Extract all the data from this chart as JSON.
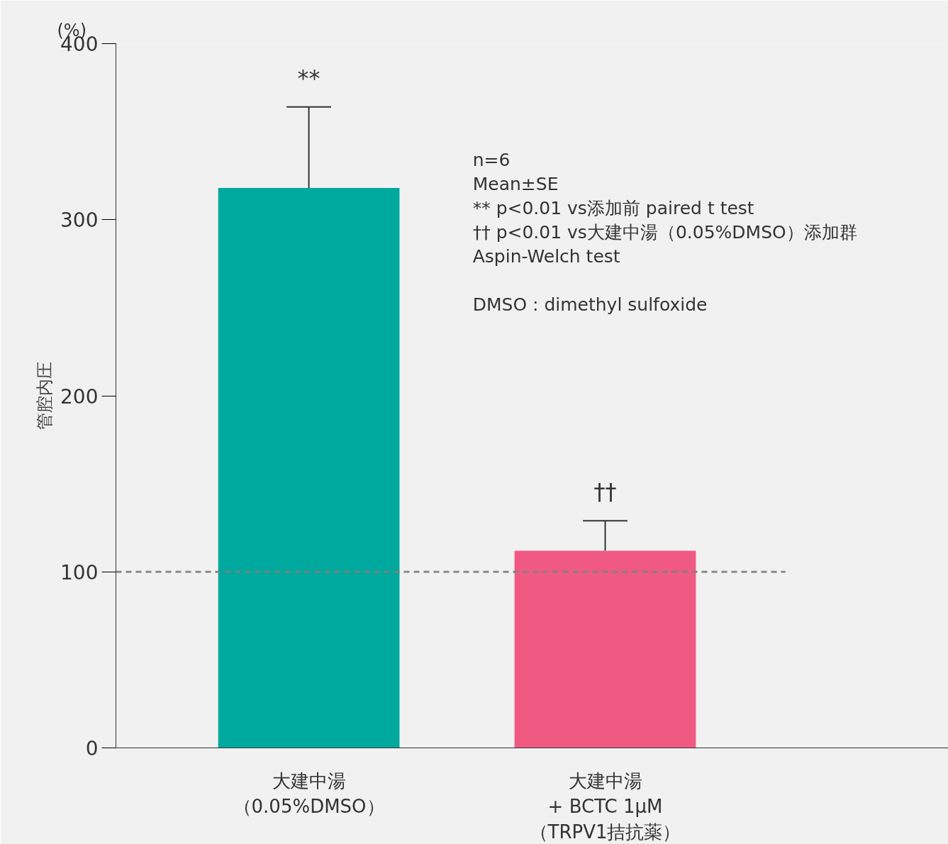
{
  "chart_data": {
    "type": "bar",
    "ylabel": "管腔内圧",
    "categories": [
      "大建中湯（0.05%DMSO）",
      "大建中湯 + BCTC 1μM（TRPV1拮抗薬）"
    ],
    "values": [
      318,
      112
    ],
    "colors": [
      "#00a99d",
      "#f05a82"
    ],
    "errors": [
      [
        318,
        364
      ],
      [
        112,
        129
      ]
    ],
    "ylim": [
      0,
      400
    ],
    "yticks": [
      0,
      100,
      200,
      300,
      400
    ],
    "grid": false,
    "ref_lines": [
      {
        "axis": "y",
        "value": 100,
        "label": null,
        "color": "#808080",
        "line_style": "dashed"
      }
    ],
    "annotations": [
      "(%)",
      "**",
      "††",
      "n=6",
      "Mean±SE",
      "**  p<0.01 vs添加前 paired t test",
      "††  p<0.01 vs大建中湯（0.05%DMSO）添加群",
      "Aspin-Welch test",
      "DMSO : dimethyl sulfoxide"
    ]
  }
}
